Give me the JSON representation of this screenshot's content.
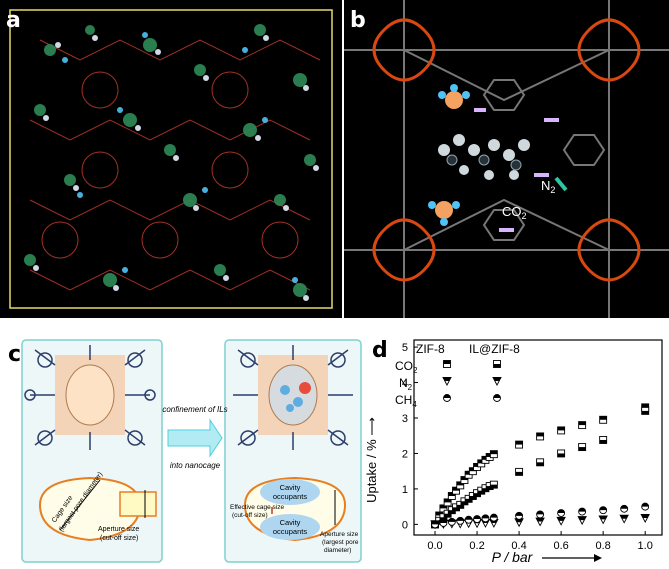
{
  "panels": {
    "a": {
      "label": "a"
    },
    "b": {
      "label": "b",
      "n2_label": "N",
      "n2_sub": "2",
      "co2_label": "CO",
      "co2_sub": "2"
    },
    "c": {
      "label": "c",
      "arrow_text_1": "confinement of ILs",
      "arrow_text_2": "into nanocage",
      "cage_size_1": "Cage size",
      "cage_size_2": "(largest pore diameter)",
      "aperture_1": "Aperture size",
      "aperture_2": "(cut-off size)",
      "cavity_1": "Cavity",
      "cavity_2": "occupants",
      "eff_cage_1": "Effective cage size",
      "eff_cage_2": "(cut-off size)",
      "aperture_r_1": "Aperture size",
      "aperture_r_2": "(largest pore",
      "aperture_r_3": "diameter)"
    },
    "d": {
      "label": "d",
      "zif8": "ZIF-8",
      "ilzif8": "IL@ZIF-8",
      "co2": "CO",
      "co2_sub": "2",
      "n2": "N",
      "n2_sub": "2",
      "ch4": "CH",
      "ch4_sub": "4",
      "ylabel": "Uptake / % ⟶",
      "xlabel": "P / bar"
    }
  },
  "chart_data": {
    "type": "scatter",
    "title": "",
    "xlabel": "P / bar",
    "ylabel": "Uptake / %",
    "xlim": [
      -0.1,
      1.08
    ],
    "ylim": [
      -0.3,
      5.2
    ],
    "xticks": [
      "0.0",
      "0.2",
      "0.4",
      "0.6",
      "0.8",
      "1.0"
    ],
    "yticks": [
      "0",
      "1",
      "2",
      "3",
      "4",
      "5"
    ],
    "series": [
      {
        "name": "CO2",
        "material": "ZIF-8",
        "marker": "square-top-filled",
        "x": [
          0.0,
          0.02,
          0.04,
          0.06,
          0.08,
          0.1,
          0.12,
          0.14,
          0.16,
          0.18,
          0.2,
          0.22,
          0.24,
          0.26,
          0.28,
          0.4,
          0.5,
          0.6,
          0.7,
          0.8,
          1.0
        ],
        "y": [
          0.0,
          0.25,
          0.45,
          0.62,
          0.8,
          0.95,
          1.1,
          1.25,
          1.4,
          1.5,
          1.62,
          1.72,
          1.82,
          1.9,
          1.98,
          2.25,
          2.48,
          2.65,
          2.8,
          2.95,
          3.3
        ]
      },
      {
        "name": "CO2",
        "material": "IL@ZIF-8",
        "marker": "square-bottom-filled",
        "x": [
          0.0,
          0.02,
          0.04,
          0.06,
          0.08,
          0.1,
          0.12,
          0.14,
          0.16,
          0.18,
          0.2,
          0.22,
          0.24,
          0.26,
          0.28,
          0.4,
          0.5,
          0.6,
          0.7,
          0.8,
          1.0
        ],
        "y": [
          0.0,
          0.1,
          0.2,
          0.3,
          0.4,
          0.48,
          0.55,
          0.65,
          0.72,
          0.8,
          0.88,
          0.95,
          1.02,
          1.08,
          1.12,
          1.48,
          1.75,
          2.0,
          2.18,
          2.38,
          3.2
        ]
      },
      {
        "name": "N2",
        "material": "ZIF-8",
        "marker": "triangle",
        "x": [
          0.0,
          0.04,
          0.08,
          0.12,
          0.16,
          0.2,
          0.24,
          0.28,
          0.4,
          0.5,
          0.6,
          0.7,
          0.8,
          0.9,
          1.0
        ],
        "y": [
          0.0,
          0.01,
          0.02,
          0.02,
          0.03,
          0.03,
          0.04,
          0.04,
          0.06,
          0.08,
          0.1,
          0.12,
          0.14,
          0.16,
          0.18
        ]
      },
      {
        "name": "CH4",
        "material": "ZIF-8",
        "marker": "circle-half",
        "x": [
          0.0,
          0.04,
          0.08,
          0.12,
          0.16,
          0.2,
          0.24,
          0.28,
          0.4,
          0.5,
          0.6,
          0.7,
          0.8,
          0.9,
          1.0
        ],
        "y": [
          0.0,
          0.04,
          0.07,
          0.1,
          0.13,
          0.15,
          0.17,
          0.19,
          0.24,
          0.28,
          0.32,
          0.36,
          0.4,
          0.44,
          0.5
        ]
      }
    ]
  }
}
